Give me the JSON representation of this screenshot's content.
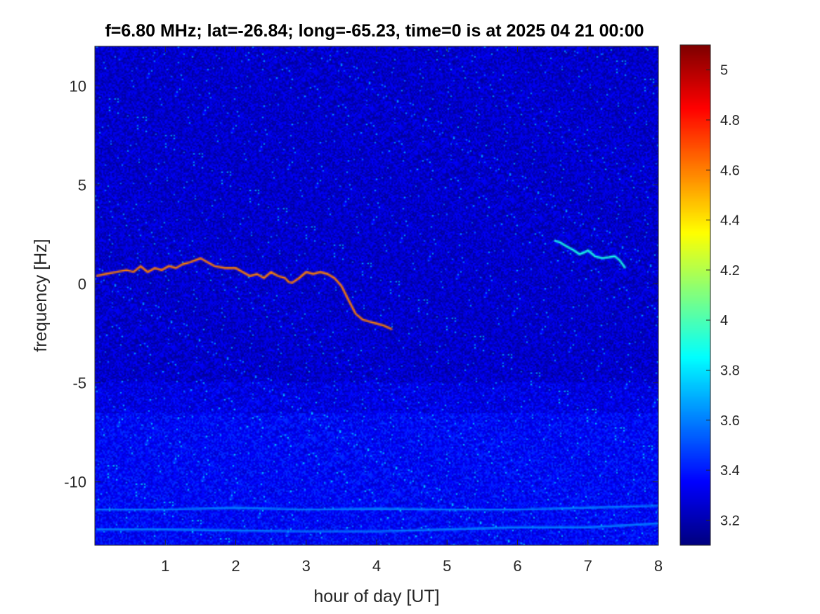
{
  "chart_data": {
    "type": "heatmap",
    "title": "f=6.80 MHz;  lat=-26.84; long=-65.23, time=0 is at 2025 04 21 00:00",
    "xlabel": "hour of day [UT]",
    "ylabel": "frequency [Hz]",
    "xlim": [
      0,
      8
    ],
    "ylim": [
      -13.2,
      12.0
    ],
    "x_ticks": [
      1,
      2,
      3,
      4,
      5,
      6,
      7,
      8
    ],
    "x_tick_labels": [
      "1",
      "2",
      "3",
      "4",
      "5",
      "6",
      "7",
      "8"
    ],
    "y_ticks": [
      10,
      5,
      0,
      -5,
      -10
    ],
    "y_tick_labels": [
      "10",
      "5",
      "0",
      "-5",
      "-10"
    ],
    "colormap": "jet",
    "color_limits": [
      3.1,
      5.1
    ],
    "colorbar_ticks": [
      5,
      4.8,
      4.6,
      4.4,
      4.2,
      4,
      3.8,
      3.6,
      3.4,
      3.2
    ],
    "colorbar_tick_labels": [
      "5",
      "4.8",
      "4.6",
      "4.4",
      "4.2",
      "4",
      "3.8",
      "3.6",
      "3.4",
      "3.2"
    ],
    "background_value": 3.25,
    "traces": [
      {
        "points": [
          [
            0.02,
            0.4
          ],
          [
            0.15,
            0.5
          ],
          [
            0.3,
            0.6
          ],
          [
            0.45,
            0.7
          ],
          [
            0.55,
            0.6
          ],
          [
            0.65,
            0.9
          ],
          [
            0.75,
            0.6
          ],
          [
            0.85,
            0.8
          ],
          [
            0.95,
            0.7
          ],
          [
            1.05,
            0.9
          ],
          [
            1.15,
            0.8
          ],
          [
            1.25,
            1.0
          ],
          [
            1.35,
            1.1
          ],
          [
            1.5,
            1.3
          ],
          [
            1.6,
            1.1
          ],
          [
            1.7,
            0.9
          ],
          [
            1.85,
            0.8
          ],
          [
            2.0,
            0.8
          ],
          [
            2.1,
            0.6
          ],
          [
            2.2,
            0.4
          ],
          [
            2.3,
            0.5
          ],
          [
            2.4,
            0.3
          ],
          [
            2.5,
            0.6
          ],
          [
            2.6,
            0.4
          ],
          [
            2.7,
            0.3
          ],
          [
            2.75,
            0.1
          ],
          [
            2.8,
            0.05
          ],
          [
            2.9,
            0.3
          ],
          [
            3.0,
            0.6
          ],
          [
            3.1,
            0.5
          ],
          [
            3.2,
            0.6
          ],
          [
            3.3,
            0.5
          ],
          [
            3.4,
            0.3
          ],
          [
            3.5,
            -0.1
          ],
          [
            3.6,
            -0.8
          ],
          [
            3.7,
            -1.5
          ],
          [
            3.8,
            -1.8
          ],
          [
            3.9,
            -1.9
          ],
          [
            4.0,
            -2.0
          ],
          [
            4.1,
            -2.1
          ],
          [
            4.22,
            -2.3
          ]
        ],
        "value": 4.6
      },
      {
        "points": [
          [
            6.52,
            2.2
          ],
          [
            6.6,
            2.1
          ],
          [
            6.7,
            1.9
          ],
          [
            6.8,
            1.7
          ],
          [
            6.88,
            1.5
          ],
          [
            6.95,
            1.6
          ],
          [
            7.0,
            1.7
          ],
          [
            7.1,
            1.4
          ],
          [
            7.2,
            1.3
          ],
          [
            7.3,
            1.35
          ],
          [
            7.38,
            1.4
          ],
          [
            7.45,
            1.2
          ],
          [
            7.53,
            0.8
          ]
        ],
        "value": 3.9
      },
      {
        "points": [
          [
            0.02,
            -11.4
          ],
          [
            1.0,
            -11.4
          ],
          [
            2.0,
            -11.3
          ],
          [
            3.0,
            -11.4
          ],
          [
            4.0,
            -11.35
          ],
          [
            5.0,
            -11.4
          ],
          [
            6.0,
            -11.4
          ],
          [
            7.0,
            -11.3
          ],
          [
            8.0,
            -11.2
          ]
        ],
        "value": 3.6
      },
      {
        "points": [
          [
            0.02,
            -12.4
          ],
          [
            1.0,
            -12.4
          ],
          [
            2.0,
            -12.45
          ],
          [
            3.0,
            -12.5
          ],
          [
            4.0,
            -12.5
          ],
          [
            5.0,
            -12.4
          ],
          [
            6.0,
            -12.3
          ],
          [
            7.0,
            -12.3
          ],
          [
            8.0,
            -12.1
          ]
        ],
        "value": 3.6
      }
    ],
    "bands": [
      {
        "y_range": [
          -13.2,
          -6.5
        ],
        "value": 3.35
      },
      {
        "y_range": [
          -9.0,
          -5.0
        ],
        "value": 3.3
      }
    ]
  }
}
